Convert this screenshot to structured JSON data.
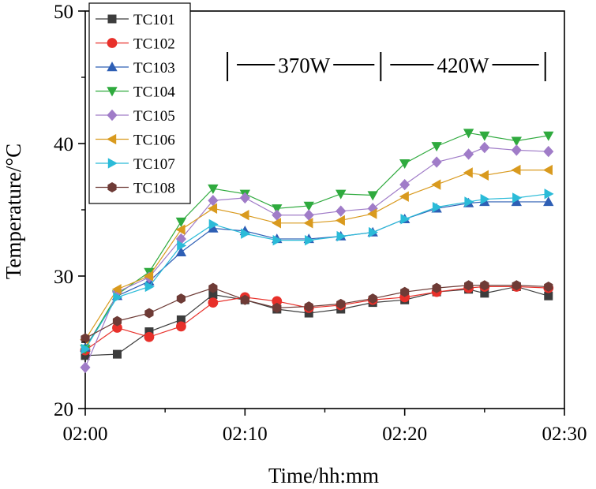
{
  "chart_data": {
    "type": "line",
    "title": "",
    "xlabel": "Time/hh:mm",
    "ylabel": "Temperature/°C",
    "xlim": [
      0,
      30
    ],
    "ylim": [
      20,
      50
    ],
    "x_ticks": [
      0,
      10,
      20,
      30
    ],
    "x_tick_labels": [
      "02:00",
      "02:10",
      "02:20",
      "02:30"
    ],
    "y_ticks": [
      20,
      30,
      40,
      50
    ],
    "y_tick_labels": [
      "20",
      "30",
      "40",
      "50"
    ],
    "legend_position": "top-left",
    "annotations": [
      {
        "text": "370W",
        "x_start": 8.9,
        "x_end": 18.5
      },
      {
        "text": "420W",
        "x_start": 18.5,
        "x_end": 28.8
      }
    ],
    "series": [
      {
        "name": "TC101",
        "color": "#3c3c3c",
        "marker": "square",
        "x": [
          0,
          2,
          4,
          6,
          8,
          10,
          12,
          14,
          16,
          18,
          20,
          22,
          24,
          25,
          27,
          29
        ],
        "values": [
          24.0,
          24.1,
          25.8,
          26.7,
          28.6,
          28.2,
          27.5,
          27.2,
          27.5,
          28.0,
          28.2,
          28.8,
          29.0,
          28.7,
          29.2,
          28.5
        ]
      },
      {
        "name": "TC102",
        "color": "#e8302a",
        "marker": "circle",
        "x": [
          0,
          2,
          4,
          6,
          8,
          10,
          12,
          14,
          16,
          18,
          20,
          22,
          24,
          25,
          27,
          29
        ],
        "values": [
          24.4,
          26.1,
          25.4,
          26.2,
          28.0,
          28.4,
          28.1,
          27.6,
          27.8,
          28.2,
          28.4,
          28.8,
          29.1,
          29.2,
          29.2,
          29.1
        ]
      },
      {
        "name": "TC103",
        "color": "#2e5fb5",
        "marker": "triangle-up",
        "x": [
          0,
          2,
          4,
          6,
          8,
          10,
          12,
          14,
          16,
          18,
          20,
          22,
          24,
          25,
          27,
          29
        ],
        "values": [
          24.6,
          28.5,
          29.6,
          31.8,
          33.6,
          33.4,
          32.8,
          32.8,
          33.0,
          33.3,
          34.3,
          35.1,
          35.5,
          35.6,
          35.6,
          35.6
        ]
      },
      {
        "name": "TC104",
        "color": "#2faa3e",
        "marker": "triangle-down",
        "x": [
          0,
          2,
          4,
          6,
          8,
          10,
          12,
          14,
          16,
          18,
          20,
          22,
          24,
          25,
          27,
          29
        ],
        "values": [
          24.5,
          28.6,
          30.3,
          34.1,
          36.6,
          36.2,
          35.1,
          35.3,
          36.2,
          36.1,
          38.5,
          39.8,
          40.8,
          40.6,
          40.2,
          40.6
        ]
      },
      {
        "name": "TC105",
        "color": "#a07cc8",
        "marker": "diamond",
        "x": [
          0,
          2,
          4,
          6,
          8,
          10,
          12,
          14,
          16,
          18,
          20,
          22,
          24,
          25,
          27,
          29
        ],
        "values": [
          23.1,
          28.8,
          29.9,
          32.8,
          35.7,
          35.9,
          34.6,
          34.6,
          34.9,
          35.1,
          36.9,
          38.6,
          39.2,
          39.7,
          39.5,
          39.4
        ]
      },
      {
        "name": "TC106",
        "color": "#d99a1e",
        "marker": "triangle-left",
        "x": [
          0,
          2,
          4,
          6,
          8,
          10,
          12,
          14,
          16,
          18,
          20,
          22,
          24,
          25,
          27,
          29
        ],
        "values": [
          25.2,
          29.0,
          30.0,
          33.5,
          35.1,
          34.6,
          34.0,
          34.0,
          34.2,
          34.7,
          36.0,
          36.9,
          37.8,
          37.6,
          38.0,
          38.0
        ]
      },
      {
        "name": "TC107",
        "color": "#2bbbd8",
        "marker": "triangle-right",
        "x": [
          0,
          2,
          4,
          6,
          8,
          10,
          12,
          14,
          16,
          18,
          20,
          22,
          24,
          25,
          27,
          29
        ],
        "values": [
          24.5,
          28.4,
          29.2,
          32.3,
          33.9,
          33.2,
          32.7,
          32.7,
          33.0,
          33.3,
          34.3,
          35.2,
          35.6,
          35.8,
          35.9,
          36.2
        ]
      },
      {
        "name": "TC108",
        "color": "#6e3b36",
        "marker": "hexagon",
        "x": [
          0,
          2,
          4,
          6,
          8,
          10,
          12,
          14,
          16,
          18,
          20,
          22,
          24,
          25,
          27,
          29
        ],
        "values": [
          25.3,
          26.6,
          27.2,
          28.3,
          29.1,
          28.2,
          27.6,
          27.7,
          27.9,
          28.3,
          28.8,
          29.1,
          29.3,
          29.3,
          29.3,
          29.2
        ]
      }
    ]
  }
}
